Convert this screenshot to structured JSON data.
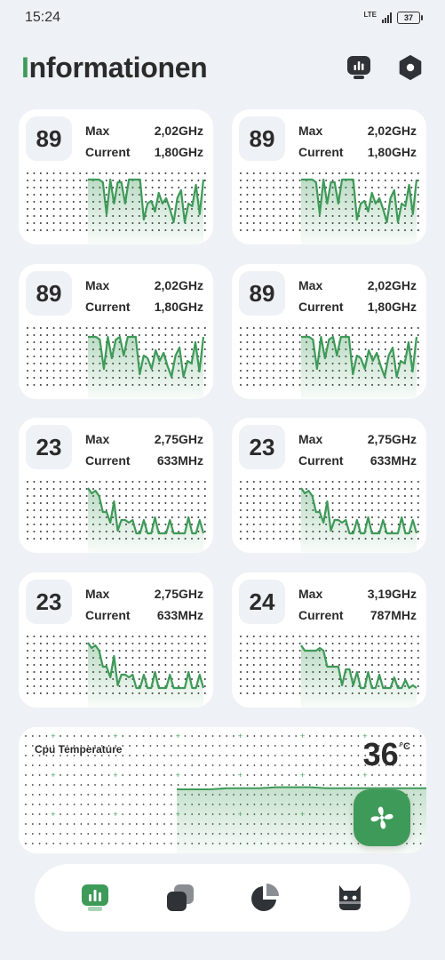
{
  "status_bar": {
    "time": "15:24",
    "network": "LTE",
    "battery": "37"
  },
  "header": {
    "title_first": "I",
    "title_rest": "nformationen"
  },
  "colors": {
    "accent": "#3e9a58",
    "text": "#2b2b2b",
    "background": "#eef1f5",
    "card": "#ffffff"
  },
  "cores": [
    {
      "usage": "89",
      "max_label": "Max",
      "max_value": "2,02GHz",
      "current_label": "Current",
      "current_value": "1,80GHz",
      "history": [
        0.95,
        0.95,
        0.95,
        0.95,
        0.9,
        0.3,
        0.95,
        0.5,
        0.9,
        0.9,
        0.5,
        0.95,
        0.95,
        0.95,
        0.95,
        0.2,
        0.5,
        0.55,
        0.35,
        0.7,
        0.5,
        0.6,
        0.4,
        0.15,
        0.6,
        0.75,
        0.15,
        0.5,
        0.45,
        0.85,
        0.3,
        0.95
      ]
    },
    {
      "usage": "89",
      "max_label": "Max",
      "max_value": "2,02GHz",
      "current_label": "Current",
      "current_value": "1,80GHz",
      "history": [
        0.95,
        0.95,
        0.95,
        0.95,
        0.9,
        0.3,
        0.95,
        0.5,
        0.9,
        0.9,
        0.5,
        0.95,
        0.95,
        0.95,
        0.95,
        0.2,
        0.5,
        0.55,
        0.35,
        0.7,
        0.5,
        0.6,
        0.4,
        0.15,
        0.6,
        0.75,
        0.15,
        0.5,
        0.45,
        0.85,
        0.3,
        0.95
      ]
    },
    {
      "usage": "89",
      "max_label": "Max",
      "max_value": "2,02GHz",
      "current_label": "Current",
      "current_value": "1,80GHz",
      "history": [
        0.9,
        0.9,
        0.9,
        0.85,
        0.3,
        0.9,
        0.5,
        0.85,
        0.9,
        0.55,
        0.9,
        0.9,
        0.9,
        0.2,
        0.55,
        0.5,
        0.3,
        0.65,
        0.45,
        0.6,
        0.35,
        0.15,
        0.55,
        0.7,
        0.15,
        0.45,
        0.4,
        0.8,
        0.25,
        0.9
      ]
    },
    {
      "usage": "89",
      "max_label": "Max",
      "max_value": "2,02GHz",
      "current_label": "Current",
      "current_value": "1,80GHz",
      "history": [
        0.9,
        0.9,
        0.9,
        0.85,
        0.3,
        0.9,
        0.5,
        0.85,
        0.9,
        0.55,
        0.9,
        0.9,
        0.9,
        0.2,
        0.55,
        0.5,
        0.3,
        0.65,
        0.45,
        0.6,
        0.35,
        0.15,
        0.55,
        0.7,
        0.15,
        0.45,
        0.4,
        0.8,
        0.25,
        0.9
      ]
    },
    {
      "usage": "23",
      "max_label": "Max",
      "max_value": "2,75GHz",
      "current_label": "Current",
      "current_value": "633MHz",
      "history": [
        0.95,
        0.85,
        0.9,
        0.8,
        0.5,
        0.5,
        0.3,
        0.7,
        0.15,
        0.35,
        0.35,
        0.3,
        0.35,
        0.1,
        0.1,
        0.35,
        0.1,
        0.1,
        0.4,
        0.1,
        0.1,
        0.1,
        0.35,
        0.1,
        0.1,
        0.1,
        0.1,
        0.4,
        0.1,
        0.1,
        0.35,
        0.1
      ]
    },
    {
      "usage": "23",
      "max_label": "Max",
      "max_value": "2,75GHz",
      "current_label": "Current",
      "current_value": "633MHz",
      "history": [
        0.95,
        0.85,
        0.9,
        0.8,
        0.5,
        0.5,
        0.3,
        0.7,
        0.15,
        0.35,
        0.35,
        0.3,
        0.35,
        0.1,
        0.1,
        0.35,
        0.1,
        0.1,
        0.4,
        0.1,
        0.1,
        0.1,
        0.35,
        0.1,
        0.1,
        0.1,
        0.1,
        0.4,
        0.1,
        0.1,
        0.35,
        0.1
      ]
    },
    {
      "usage": "23",
      "max_label": "Max",
      "max_value": "2,75GHz",
      "current_label": "Current",
      "current_value": "633MHz",
      "history": [
        0.95,
        0.85,
        0.9,
        0.8,
        0.5,
        0.5,
        0.3,
        0.7,
        0.15,
        0.35,
        0.35,
        0.3,
        0.35,
        0.1,
        0.1,
        0.35,
        0.1,
        0.1,
        0.4,
        0.1,
        0.1,
        0.1,
        0.35,
        0.1,
        0.1,
        0.1,
        0.1,
        0.4,
        0.1,
        0.1,
        0.35,
        0.1
      ]
    },
    {
      "usage": "24",
      "max_label": "Max",
      "max_value": "3,19GHz",
      "current_label": "Current",
      "current_value": "787MHz",
      "history": [
        0.9,
        0.8,
        0.8,
        0.8,
        0.8,
        0.85,
        0.8,
        0.5,
        0.5,
        0.5,
        0.5,
        0.15,
        0.45,
        0.45,
        0.15,
        0.4,
        0.1,
        0.1,
        0.4,
        0.1,
        0.1,
        0.35,
        0.1,
        0.1,
        0.1,
        0.3,
        0.1,
        0.1,
        0.25,
        0.1,
        0.15,
        0.1
      ]
    }
  ],
  "temperature": {
    "label": "Cpu Temperature",
    "value": "36",
    "unit": "°C",
    "history": [
      0.5,
      0.5,
      0.5,
      0.51,
      0.51,
      0.51,
      0.52,
      0.52,
      0.52,
      0.51,
      0.51,
      0.51,
      0.51,
      0.51,
      0.51,
      0.51
    ]
  },
  "nav": {
    "items": [
      "cpu-icon",
      "apps-icon",
      "storage-icon",
      "android-icon"
    ]
  }
}
